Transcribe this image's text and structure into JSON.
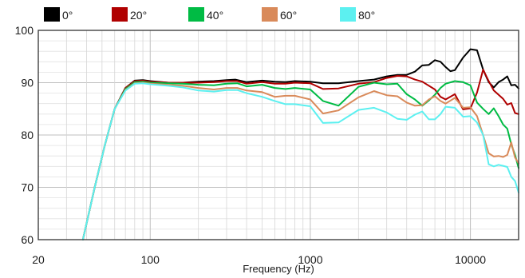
{
  "chart_data": {
    "type": "line",
    "title": "",
    "xlabel": "Frequency (Hz)",
    "ylabel": "",
    "x_scale": "log",
    "xlim": [
      20,
      20000
    ],
    "ylim": [
      60,
      100
    ],
    "x_ticks": [
      {
        "value": 20,
        "label": "20"
      },
      {
        "value": 100,
        "label": "100"
      },
      {
        "value": 1000,
        "label": "1000"
      },
      {
        "value": 10000,
        "label": "10000"
      }
    ],
    "y_ticks": [
      {
        "value": 60,
        "label": "60"
      },
      {
        "value": 70,
        "label": "70"
      },
      {
        "value": 80,
        "label": "80"
      },
      {
        "value": 90,
        "label": "90"
      },
      {
        "value": 100,
        "label": "100"
      }
    ],
    "grid": true,
    "legend_position": "top",
    "series": [
      {
        "name": "0°",
        "color": "#000000",
        "points": [
          [
            38,
            60
          ],
          [
            45,
            70
          ],
          [
            52,
            78
          ],
          [
            60,
            85
          ],
          [
            70,
            89
          ],
          [
            80,
            90.4
          ],
          [
            90,
            90.5
          ],
          [
            100,
            90.3
          ],
          [
            130,
            90.0
          ],
          [
            160,
            90.0
          ],
          [
            200,
            90.2
          ],
          [
            250,
            90.3
          ],
          [
            300,
            90.5
          ],
          [
            340,
            90.6
          ],
          [
            400,
            90.1
          ],
          [
            500,
            90.4
          ],
          [
            600,
            90.2
          ],
          [
            700,
            90.1
          ],
          [
            800,
            90.3
          ],
          [
            1000,
            90.2
          ],
          [
            1200,
            89.9
          ],
          [
            1500,
            89.9
          ],
          [
            2000,
            90.3
          ],
          [
            2500,
            90.6
          ],
          [
            3000,
            91.2
          ],
          [
            3500,
            91.5
          ],
          [
            4000,
            91.5
          ],
          [
            4500,
            92.1
          ],
          [
            5000,
            93.3
          ],
          [
            5500,
            93.4
          ],
          [
            6000,
            94.3
          ],
          [
            6500,
            94.0
          ],
          [
            7000,
            93.0
          ],
          [
            7500,
            92.2
          ],
          [
            8000,
            92.4
          ],
          [
            9000,
            94.8
          ],
          [
            10000,
            96.4
          ],
          [
            11000,
            96.2
          ],
          [
            12000,
            92.5
          ],
          [
            13000,
            90.1
          ],
          [
            14000,
            89.1
          ],
          [
            15000,
            90.1
          ],
          [
            16000,
            90.6
          ],
          [
            17000,
            91.2
          ],
          [
            18000,
            89.5
          ],
          [
            19000,
            89.6
          ],
          [
            20000,
            88.9
          ]
        ]
      },
      {
        "name": "20°",
        "color": "#b00000",
        "points": [
          [
            38,
            60
          ],
          [
            45,
            70
          ],
          [
            52,
            78
          ],
          [
            60,
            85
          ],
          [
            70,
            89
          ],
          [
            80,
            90.3
          ],
          [
            90,
            90.4
          ],
          [
            100,
            90.2
          ],
          [
            130,
            90.0
          ],
          [
            160,
            90.0
          ],
          [
            200,
            90.0
          ],
          [
            250,
            90.1
          ],
          [
            300,
            90.3
          ],
          [
            350,
            90.3
          ],
          [
            400,
            89.8
          ],
          [
            500,
            90.1
          ],
          [
            600,
            89.8
          ],
          [
            700,
            89.8
          ],
          [
            800,
            90.0
          ],
          [
            1000,
            89.9
          ],
          [
            1200,
            88.8
          ],
          [
            1500,
            88.9
          ],
          [
            2000,
            89.8
          ],
          [
            2500,
            90.1
          ],
          [
            3000,
            90.9
          ],
          [
            3500,
            91.3
          ],
          [
            4000,
            91.2
          ],
          [
            4500,
            90.6
          ],
          [
            5000,
            90.2
          ],
          [
            6000,
            88.7
          ],
          [
            6500,
            87.3
          ],
          [
            7000,
            86.8
          ],
          [
            8000,
            87.8
          ],
          [
            9000,
            84.9
          ],
          [
            10000,
            85.1
          ],
          [
            11000,
            88.1
          ],
          [
            12000,
            92.5
          ],
          [
            13000,
            90.3
          ],
          [
            14000,
            88.5
          ],
          [
            15000,
            87.7
          ],
          [
            16000,
            86.9
          ],
          [
            17000,
            85.8
          ],
          [
            18000,
            86.1
          ],
          [
            19000,
            84.2
          ],
          [
            20000,
            84.0
          ]
        ]
      },
      {
        "name": "40°",
        "color": "#00bb44",
        "points": [
          [
            38,
            60
          ],
          [
            45,
            70
          ],
          [
            52,
            78
          ],
          [
            60,
            85
          ],
          [
            70,
            88.8
          ],
          [
            80,
            90.1
          ],
          [
            90,
            90.2
          ],
          [
            100,
            90.0
          ],
          [
            130,
            89.9
          ],
          [
            160,
            89.8
          ],
          [
            200,
            89.6
          ],
          [
            250,
            89.5
          ],
          [
            300,
            89.8
          ],
          [
            350,
            89.9
          ],
          [
            400,
            89.3
          ],
          [
            500,
            89.6
          ],
          [
            600,
            89.0
          ],
          [
            700,
            88.8
          ],
          [
            800,
            89.0
          ],
          [
            1000,
            88.7
          ],
          [
            1200,
            86.5
          ],
          [
            1500,
            85.6
          ],
          [
            2000,
            89.2
          ],
          [
            2500,
            90.0
          ],
          [
            3000,
            89.7
          ],
          [
            3500,
            89.8
          ],
          [
            4000,
            87.8
          ],
          [
            4500,
            86.8
          ],
          [
            5000,
            85.6
          ],
          [
            5500,
            86.6
          ],
          [
            6000,
            87.7
          ],
          [
            6500,
            89.0
          ],
          [
            7000,
            89.8
          ],
          [
            8000,
            90.3
          ],
          [
            9000,
            90.1
          ],
          [
            10000,
            89.5
          ],
          [
            11000,
            86.2
          ],
          [
            12000,
            85.0
          ],
          [
            13000,
            84.0
          ],
          [
            14000,
            85.1
          ],
          [
            15000,
            83.6
          ],
          [
            16000,
            82.0
          ],
          [
            17000,
            81.2
          ],
          [
            18000,
            78.2
          ],
          [
            19000,
            76.2
          ],
          [
            20000,
            73.7
          ]
        ]
      },
      {
        "name": "60°",
        "color": "#d98a5a",
        "points": [
          [
            38,
            60
          ],
          [
            45,
            70
          ],
          [
            52,
            78
          ],
          [
            60,
            85
          ],
          [
            70,
            88.6
          ],
          [
            80,
            89.9
          ],
          [
            90,
            90.0
          ],
          [
            100,
            89.8
          ],
          [
            130,
            89.6
          ],
          [
            160,
            89.4
          ],
          [
            200,
            89.0
          ],
          [
            250,
            88.7
          ],
          [
            300,
            89.0
          ],
          [
            350,
            89.0
          ],
          [
            400,
            88.5
          ],
          [
            500,
            88.2
          ],
          [
            600,
            87.3
          ],
          [
            700,
            87.5
          ],
          [
            800,
            87.5
          ],
          [
            1000,
            86.8
          ],
          [
            1200,
            84.1
          ],
          [
            1500,
            84.7
          ],
          [
            2000,
            87.2
          ],
          [
            2500,
            88.4
          ],
          [
            3000,
            87.6
          ],
          [
            3500,
            87.4
          ],
          [
            4000,
            86.2
          ],
          [
            4500,
            85.6
          ],
          [
            5000,
            85.7
          ],
          [
            5500,
            86.8
          ],
          [
            6000,
            87.4
          ],
          [
            6500,
            86.5
          ],
          [
            7000,
            86.0
          ],
          [
            8000,
            87.1
          ],
          [
            9000,
            85.2
          ],
          [
            10000,
            85.3
          ],
          [
            11000,
            83.6
          ],
          [
            12000,
            80.0
          ],
          [
            13000,
            76.5
          ],
          [
            14000,
            75.9
          ],
          [
            15000,
            76.0
          ],
          [
            16000,
            75.8
          ],
          [
            17000,
            76.2
          ],
          [
            18000,
            78.6
          ],
          [
            19000,
            75.7
          ],
          [
            20000,
            74.6
          ]
        ]
      },
      {
        "name": "80°",
        "color": "#5cf0f0",
        "points": [
          [
            38,
            60
          ],
          [
            45,
            70
          ],
          [
            52,
            78
          ],
          [
            60,
            85
          ],
          [
            70,
            88.5
          ],
          [
            80,
            89.8
          ],
          [
            90,
            89.9
          ],
          [
            100,
            89.7
          ],
          [
            130,
            89.4
          ],
          [
            160,
            89.1
          ],
          [
            200,
            88.5
          ],
          [
            250,
            88.3
          ],
          [
            300,
            88.6
          ],
          [
            350,
            88.6
          ],
          [
            400,
            88.0
          ],
          [
            500,
            87.3
          ],
          [
            600,
            86.5
          ],
          [
            700,
            85.9
          ],
          [
            800,
            85.9
          ],
          [
            1000,
            85.5
          ],
          [
            1200,
            82.3
          ],
          [
            1500,
            82.4
          ],
          [
            2000,
            84.8
          ],
          [
            2500,
            85.2
          ],
          [
            3000,
            84.3
          ],
          [
            3500,
            83.1
          ],
          [
            4000,
            82.9
          ],
          [
            4500,
            83.9
          ],
          [
            5000,
            84.5
          ],
          [
            5500,
            83.0
          ],
          [
            6000,
            83.0
          ],
          [
            6500,
            84.0
          ],
          [
            7000,
            85.4
          ],
          [
            8000,
            85.2
          ],
          [
            9000,
            83.5
          ],
          [
            10000,
            83.6
          ],
          [
            11000,
            82.4
          ],
          [
            12000,
            80.0
          ],
          [
            13000,
            74.4
          ],
          [
            14000,
            74.0
          ],
          [
            15000,
            74.3
          ],
          [
            16000,
            74.1
          ],
          [
            17000,
            73.9
          ],
          [
            18000,
            72.0
          ],
          [
            19000,
            71.2
          ],
          [
            20000,
            69.0
          ]
        ]
      }
    ]
  }
}
